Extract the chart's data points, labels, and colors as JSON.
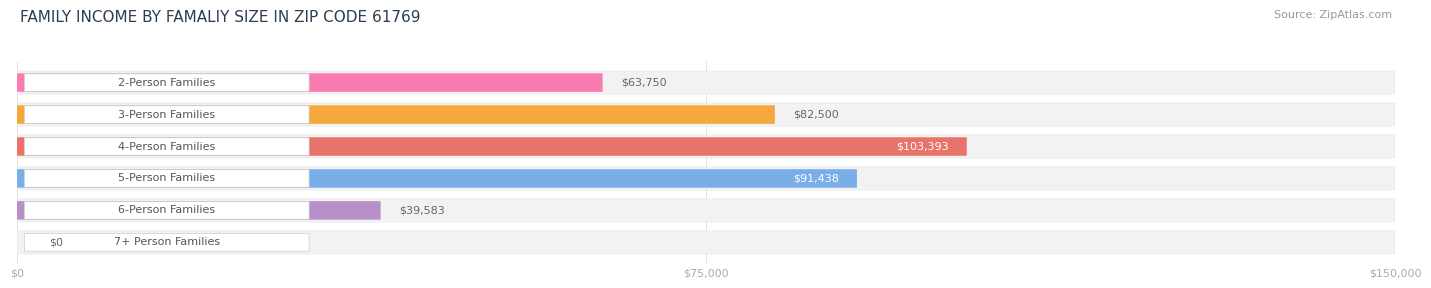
{
  "title": "FAMILY INCOME BY FAMALIY SIZE IN ZIP CODE 61769",
  "source": "Source: ZipAtlas.com",
  "categories": [
    "2-Person Families",
    "3-Person Families",
    "4-Person Families",
    "5-Person Families",
    "6-Person Families",
    "7+ Person Families"
  ],
  "values": [
    63750,
    82500,
    103393,
    91438,
    39583,
    0
  ],
  "bar_colors": [
    "#f87cb0",
    "#f5a93c",
    "#e8736a",
    "#7aaee8",
    "#b88fc8",
    "#6fcfcf"
  ],
  "track_color": "#f2f2f2",
  "track_border_color": "#e8e8e8",
  "background_color": "#ffffff",
  "xlim": [
    0,
    150000
  ],
  "xticks": [
    0,
    75000,
    150000
  ],
  "xtick_labels": [
    "$0",
    "$75,000",
    "$150,000"
  ],
  "title_fontsize": 11,
  "label_fontsize": 8.0,
  "value_fontsize": 8.0,
  "source_fontsize": 8,
  "value_inside": [
    false,
    false,
    true,
    true,
    false,
    false
  ],
  "value_labels": [
    "$63,750",
    "$82,500",
    "$103,393",
    "$91,438",
    "$39,583",
    "$0"
  ]
}
